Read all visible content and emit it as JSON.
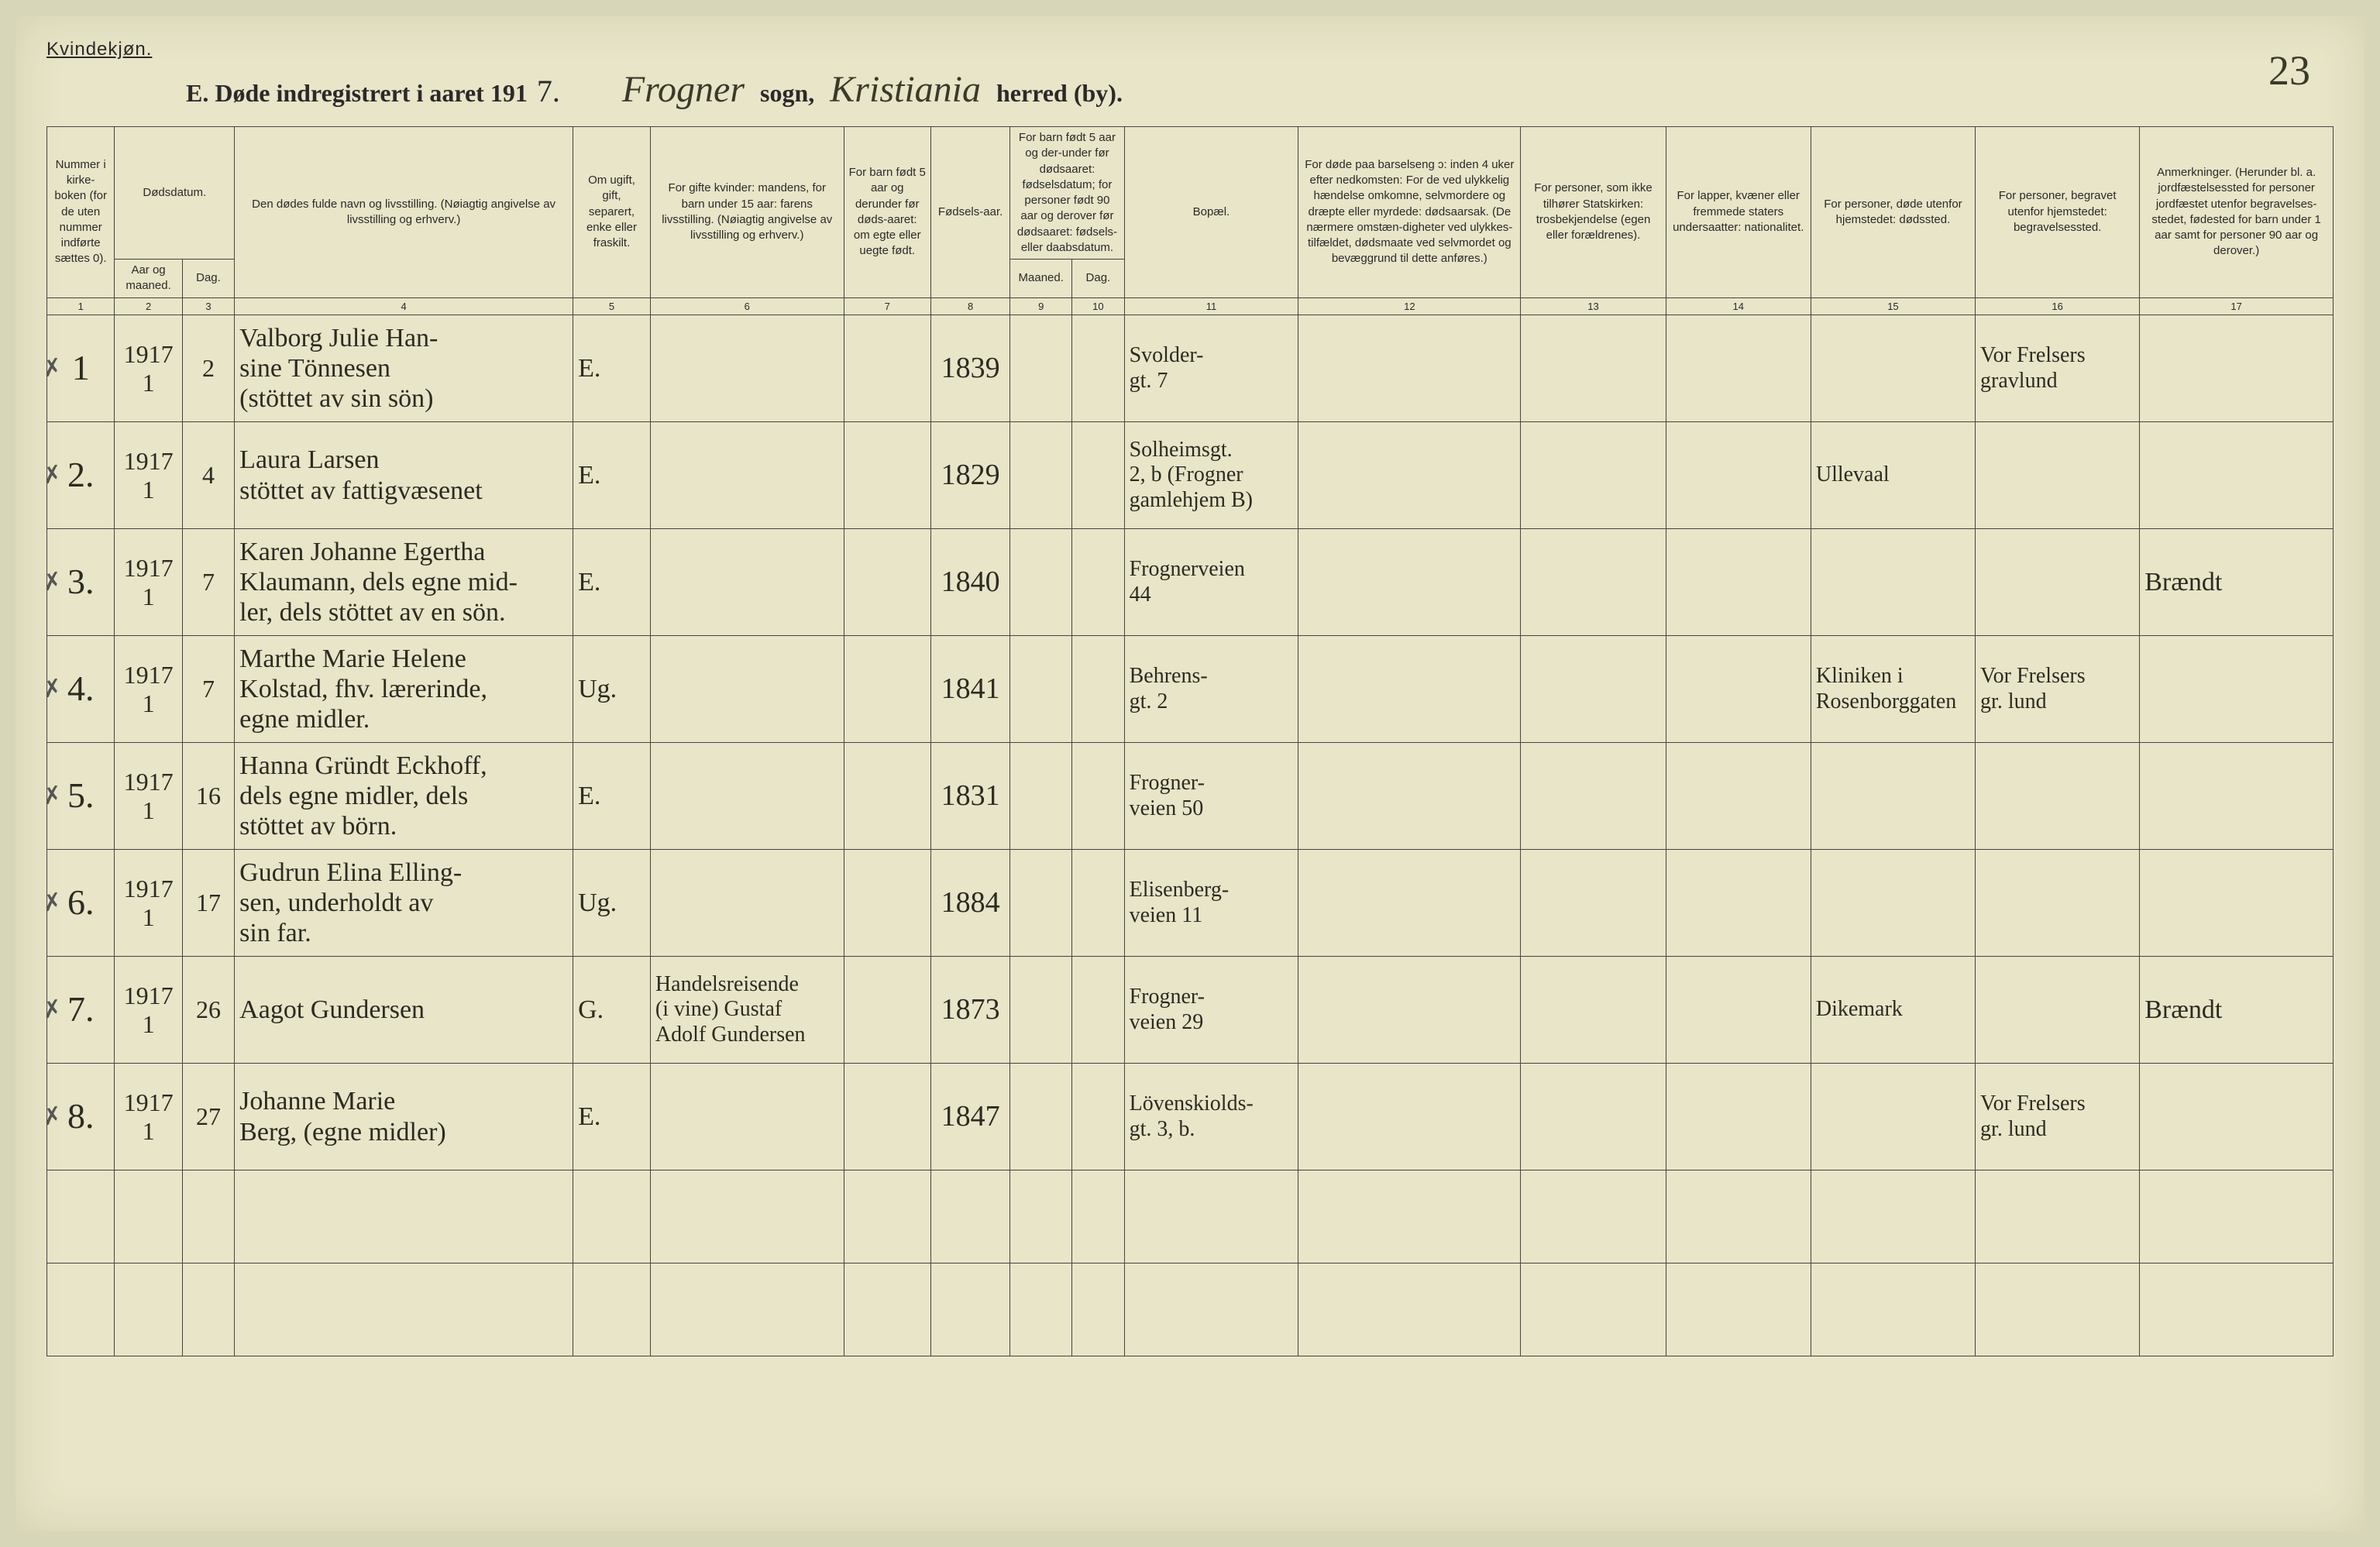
{
  "header": {
    "gender_label": "Kvindekjøn.",
    "title_prefix": "E.  Døde indregistrert i aaret 191",
    "year_suffix": "7.",
    "parish_script": "Frogner",
    "parish_label": "sogn,",
    "district_script": "Kristiania",
    "district_label": "herred (by).",
    "page_number": "23"
  },
  "columns": {
    "c1": "Nummer i kirke-boken (for de uten nummer indførte sættes 0).",
    "c2_top": "Dødsdatum.",
    "c2a": "Aar og maaned.",
    "c2b": "Dag.",
    "c4": "Den dødes fulde navn og livsstilling.\n(Nøiagtig angivelse av livsstilling og erhverv.)",
    "c5": "Om ugift, gift, separert, enke eller fraskilt.",
    "c6": "For gifte kvinder: mandens, for barn under 15 aar: farens livsstilling. (Nøiagtig angivelse av livsstilling og erhverv.)",
    "c7": "For barn født 5 aar og derunder før døds-aaret: om egte eller uegte født.",
    "c8": "Fødsels-aar.",
    "c9_top": "For barn født 5 aar og der-under før dødsaaret: fødselsdatum; for personer født 90 aar og derover før dødsaaret: fødsels- eller daabsdatum.",
    "c9a": "Maaned.",
    "c9b": "Dag.",
    "c11": "Bopæl.",
    "c12": "For døde paa barselseng ɔ: inden 4 uker efter nedkomsten: For de ved ulykkelig hændelse omkomne, selvmordere og dræpte eller myrdede: dødsaarsak. (De nærmere omstæn-digheter ved ulykkes-tilfældet, dødsmaate ved selvmordet og bevæggrund til dette anføres.)",
    "c13": "For personer, som ikke tilhører Statskirken: trosbekjendelse (egen eller forældrenes).",
    "c14": "For lapper, kvæner eller fremmede staters undersaatter: nationalitet.",
    "c15": "For personer, døde utenfor hjemstedet: dødssted.",
    "c16": "For personer, begravet utenfor hjemstedet: begravelsessted.",
    "c17": "Anmerkninger. (Herunder bl. a. jordfæstelsessted for personer jordfæstet utenfor begravelses-stedet, fødested for barn under 1 aar samt for personer 90 aar og derover.)"
  },
  "colnums": [
    "1",
    "2",
    "3",
    "4",
    "5",
    "6",
    "7",
    "8",
    "9",
    "10",
    "11",
    "12",
    "13",
    "14",
    "15",
    "16",
    "17"
  ],
  "rows": [
    {
      "num": "1",
      "yr_top": "1917",
      "yr_bot": "1",
      "day": "2",
      "name": "Valborg Julie Han-\nsine Tönnesen\n(stöttet av sin sön)",
      "status": "E.",
      "spouse": "",
      "u5": "",
      "byr": "1839",
      "res": "Svolder-\ngt. 7",
      "cause": "",
      "rel": "",
      "nat": "",
      "dplace": "",
      "bplace": "Vor Frelsers\ngravlund",
      "notes": ""
    },
    {
      "num": "2.",
      "yr_top": "1917",
      "yr_bot": "1",
      "day": "4",
      "name": "Laura Larsen\nstöttet av fattigvæsenet",
      "status": "E.",
      "spouse": "",
      "u5": "",
      "byr": "1829",
      "res": "Solheimsgt.\n2, b (Frogner\ngamlehjem B)",
      "cause": "",
      "rel": "",
      "nat": "",
      "dplace": "Ullevaal",
      "bplace": "",
      "notes": ""
    },
    {
      "num": "3.",
      "yr_top": "1917",
      "yr_bot": "1",
      "day": "7",
      "name": "Karen Johanne Egertha\nKlaumann, dels egne mid-\nler, dels stöttet av en sön.",
      "status": "E.",
      "spouse": "",
      "u5": "",
      "byr": "1840",
      "res": "Frognerveien\n44",
      "cause": "",
      "rel": "",
      "nat": "",
      "dplace": "",
      "bplace": "",
      "notes": "Brændt"
    },
    {
      "num": "4.",
      "yr_top": "1917",
      "yr_bot": "1",
      "day": "7",
      "name": "Marthe Marie Helene\nKolstad, fhv. lærerinde,\negne midler.",
      "status": "Ug.",
      "spouse": "",
      "u5": "",
      "byr": "1841",
      "res": "Behrens-\ngt. 2",
      "cause": "",
      "rel": "",
      "nat": "",
      "dplace": "Kliniken i\nRosenborggaten",
      "bplace": "Vor Frelsers\ngr. lund",
      "notes": ""
    },
    {
      "num": "5.",
      "yr_top": "1917",
      "yr_bot": "1",
      "day": "16",
      "name": "Hanna Gründt Eckhoff,\ndels egne midler, dels\nstöttet av börn.",
      "status": "E.",
      "spouse": "",
      "u5": "",
      "byr": "1831",
      "res": "Frogner-\nveien 50",
      "cause": "",
      "rel": "",
      "nat": "",
      "dplace": "",
      "bplace": "",
      "notes": ""
    },
    {
      "num": "6.",
      "yr_top": "1917",
      "yr_bot": "1",
      "day": "17",
      "name": "Gudrun Elina Elling-\nsen, underholdt av\nsin far.",
      "status": "Ug.",
      "spouse": "",
      "u5": "",
      "byr": "1884",
      "res": "Elisenberg-\nveien 11",
      "cause": "",
      "rel": "",
      "nat": "",
      "dplace": "",
      "bplace": "",
      "notes": ""
    },
    {
      "num": "7.",
      "yr_top": "1917",
      "yr_bot": "1",
      "day": "26",
      "name": "Aagot Gundersen",
      "status": "G.",
      "spouse": "Handelsreisende\n(i vine) Gustaf\nAdolf Gundersen",
      "u5": "",
      "byr": "1873",
      "res": "Frogner-\nveien 29",
      "cause": "",
      "rel": "",
      "nat": "",
      "dplace": "Dikemark",
      "bplace": "",
      "notes": "Brændt"
    },
    {
      "num": "8.",
      "yr_top": "1917",
      "yr_bot": "1",
      "day": "27",
      "name": "Johanne Marie\nBerg, (egne midler)",
      "status": "E.",
      "spouse": "",
      "u5": "",
      "byr": "1847",
      "res": "Lövenskiolds-\ngt. 3, b.",
      "cause": "",
      "rel": "",
      "nat": "",
      "dplace": "",
      "bplace": "Vor Frelsers\ngr. lund",
      "notes": ""
    }
  ],
  "empty_rows": 2
}
